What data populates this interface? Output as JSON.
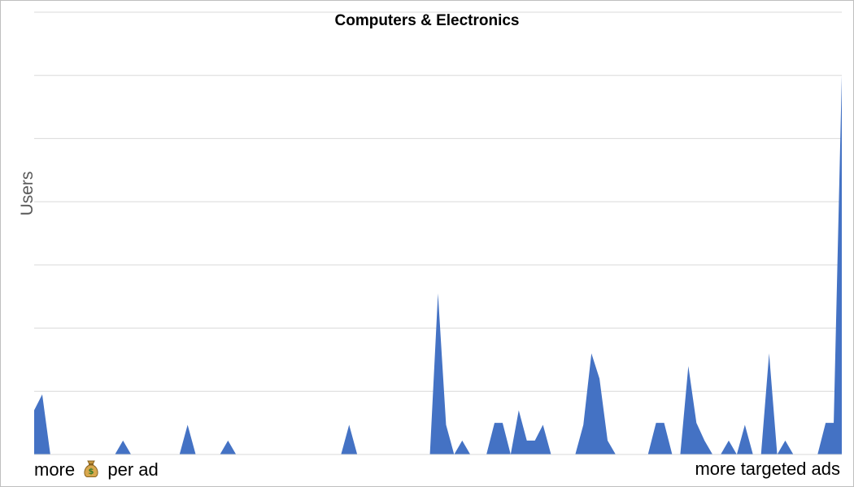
{
  "chart_data": {
    "type": "area",
    "title": "Computers & Electronics",
    "ylabel": "Users",
    "x_left_label_before": "more",
    "x_left_label_icon": "money-bag-icon",
    "x_left_label_after": "per ad",
    "x_right_label": "more targeted ads",
    "grid": true,
    "legend": "none",
    "color": "#4472C4",
    "ylim": [
      0,
      7
    ],
    "values": [
      0.7,
      0.95,
      0,
      0,
      0,
      0,
      0,
      0,
      0,
      0,
      0,
      0.22,
      0,
      0,
      0,
      0,
      0,
      0,
      0,
      0.47,
      0,
      0,
      0,
      0,
      0.22,
      0,
      0,
      0,
      0,
      0,
      0,
      0,
      0,
      0,
      0,
      0,
      0,
      0,
      0,
      0.47,
      0,
      0,
      0,
      0,
      0,
      0,
      0,
      0,
      0,
      0,
      2.55,
      0.47,
      0,
      0.22,
      0,
      0,
      0,
      0.5,
      0.5,
      0,
      0.7,
      0.22,
      0.22,
      0.47,
      0,
      0,
      0,
      0,
      0.47,
      1.6,
      1.2,
      0.22,
      0,
      0,
      0,
      0,
      0,
      0.5,
      0.5,
      0,
      0,
      1.4,
      0.5,
      0.22,
      0,
      0,
      0.22,
      0,
      0.47,
      0,
      0,
      1.6,
      0,
      0.22,
      0,
      0,
      0,
      0,
      0.5,
      0.5,
      6.0
    ]
  }
}
